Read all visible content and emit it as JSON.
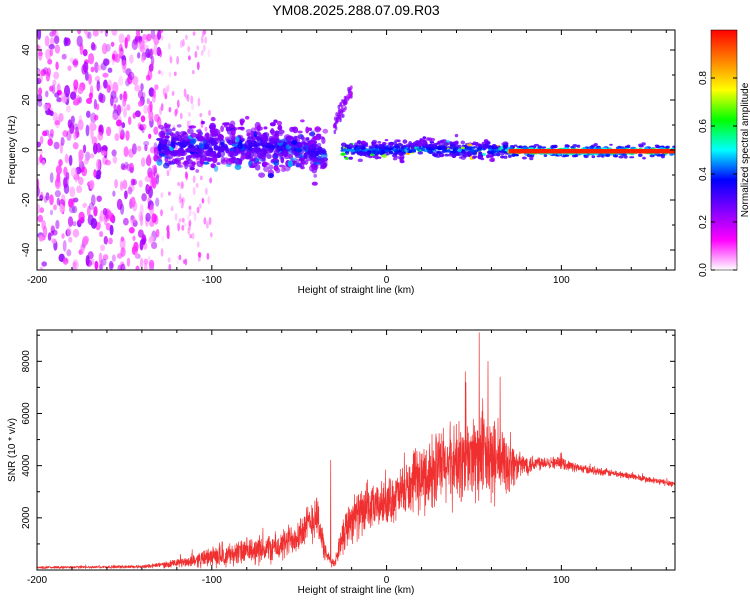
{
  "title": "YM08.2025.288.07.09.R03",
  "chart_data": [
    {
      "type": "heatmap",
      "name": "spectrogram",
      "xlabel": "Height of straight line (km)",
      "ylabel": "Frequency (Hz)",
      "xlim": [
        -200,
        165
      ],
      "ylim": [
        -48,
        48
      ],
      "xticks": [
        -200,
        -100,
        0,
        100
      ],
      "yticks": [
        -40,
        -20,
        0,
        20,
        40
      ],
      "colorbar": {
        "label": "Normalized spectral amplitude",
        "range": [
          0,
          1
        ],
        "ticks": [
          0.0,
          0.2,
          0.4,
          0.6,
          0.8
        ],
        "colormap": [
          "#ffffff",
          "#ff00ff",
          "#8000ff",
          "#0000ff",
          "#00ffff",
          "#00ff00",
          "#ffff00",
          "#ff8000",
          "#ff0000"
        ]
      },
      "features": [
        {
          "x_range": [
            -200,
            -130
          ],
          "freq_range": [
            -48,
            48
          ],
          "amplitude": 0.12,
          "desc": "scattered noise"
        },
        {
          "x_range": [
            -130,
            -100
          ],
          "freq_range": [
            -48,
            48
          ],
          "amplitude": 0.05,
          "desc": "faint noise"
        },
        {
          "x_range": [
            -130,
            -35
          ],
          "freq_range": [
            -10,
            12
          ],
          "amplitude": 0.25,
          "desc": "broadband signal"
        },
        {
          "x_range": [
            -30,
            -20
          ],
          "freq_range": [
            10,
            24
          ],
          "amplitude": 0.2,
          "desc": "rising branch"
        },
        {
          "x_range": [
            -25,
            70
          ],
          "freq_range": [
            -4,
            4
          ],
          "amplitude": 0.5,
          "desc": "narrow band"
        },
        {
          "x_range": [
            70,
            165
          ],
          "freq_range": [
            -3,
            3
          ],
          "amplitude": 0.95,
          "desc": "strong carrier"
        }
      ]
    },
    {
      "type": "line",
      "name": "snr",
      "xlabel": "Height of straight line (km)",
      "ylabel": "SNR (10 * v/v)",
      "xlim": [
        -200,
        165
      ],
      "ylim": [
        0,
        9200
      ],
      "xticks": [
        -200,
        -100,
        0,
        100
      ],
      "yticks": [
        2000,
        4000,
        6000,
        8000
      ],
      "color": "#f03030",
      "envelope": {
        "x": [
          -200,
          -170,
          -140,
          -120,
          -100,
          -80,
          -60,
          -45,
          -40,
          -35,
          -30,
          -25,
          -20,
          -10,
          0,
          10,
          20,
          30,
          40,
          50,
          60,
          70,
          75,
          90,
          100,
          110,
          120,
          130,
          140,
          150,
          165
        ],
        "mean": [
          100,
          110,
          130,
          250,
          500,
          700,
          900,
          1700,
          2200,
          600,
          200,
          1400,
          2000,
          2300,
          2600,
          3000,
          3500,
          3900,
          4100,
          4300,
          4200,
          4100,
          4000,
          4150,
          4100,
          3900,
          3800,
          3700,
          3600,
          3450,
          3300
        ],
        "spread": [
          60,
          60,
          70,
          180,
          450,
          600,
          700,
          900,
          1200,
          400,
          150,
          900,
          1100,
          1000,
          1000,
          1200,
          1500,
          1800,
          1900,
          2100,
          2000,
          1500,
          600,
          300,
          250,
          200,
          180,
          160,
          150,
          150,
          150
        ],
        "peaks": [
          {
            "x": 53,
            "y": 9100
          },
          {
            "x": 58,
            "y": 8000
          },
          {
            "x": 45,
            "y": 7600
          },
          {
            "x": 65,
            "y": 7400
          },
          {
            "x": -32,
            "y": 4200
          },
          {
            "x": 100,
            "y": 4500
          }
        ]
      }
    }
  ]
}
